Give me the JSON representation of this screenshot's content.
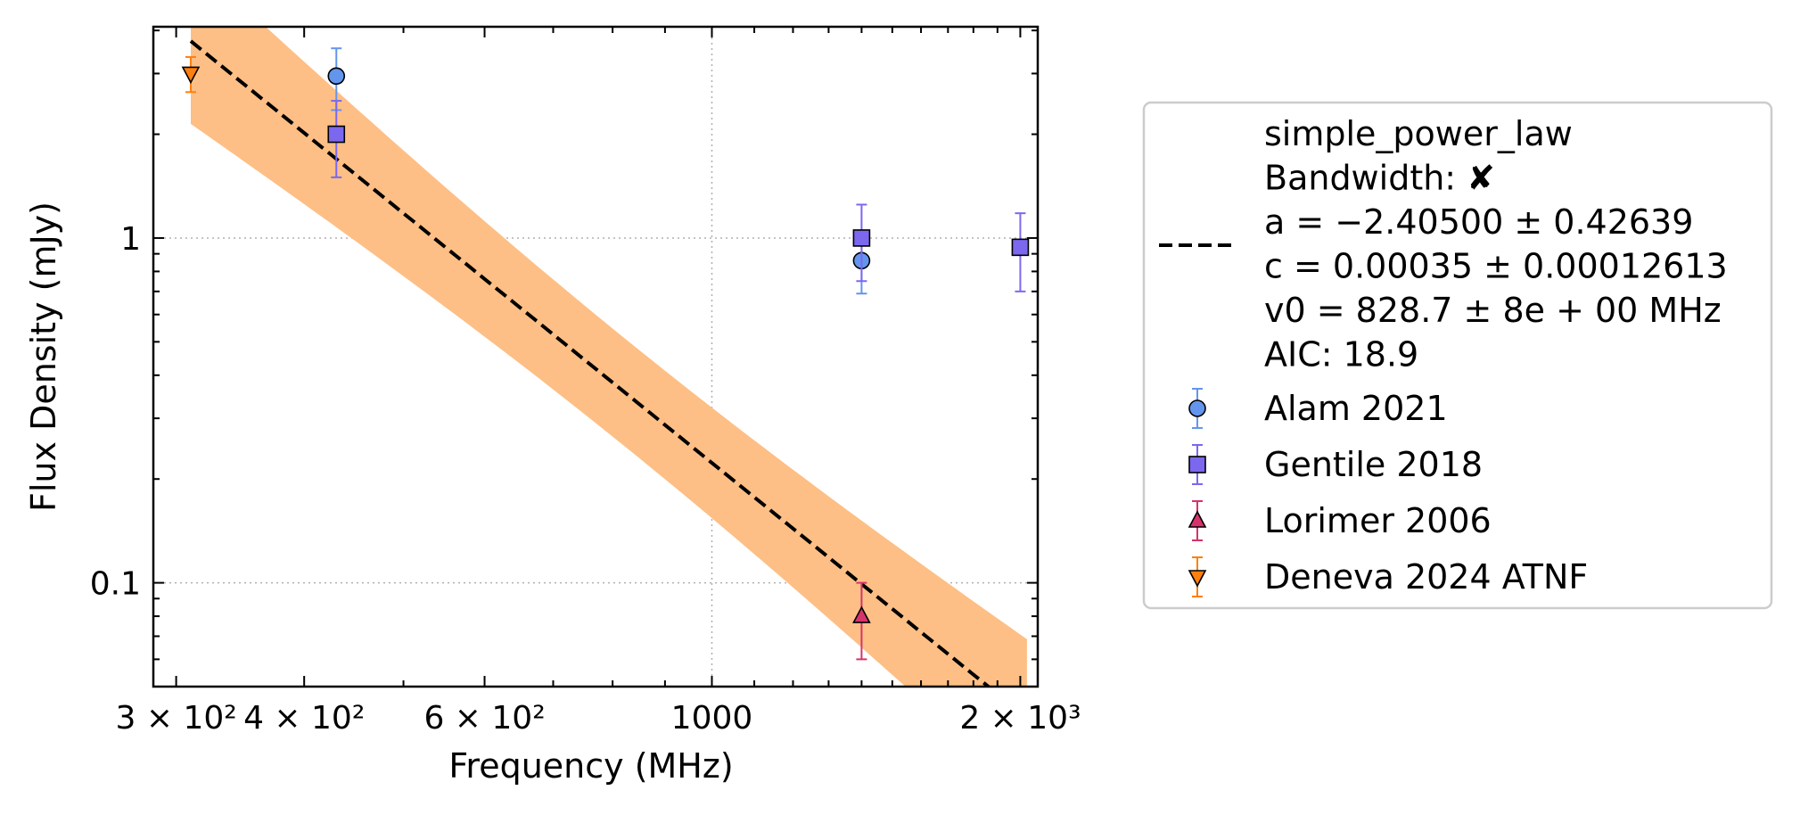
{
  "chart_data": {
    "type": "scatter",
    "title": "",
    "xlabel": "Frequency (MHz)",
    "ylabel": "Flux Density (mJy)",
    "xscale": "log",
    "yscale": "log",
    "xlim": [
      285,
      2080
    ],
    "ylim": [
      0.05,
      4.1
    ],
    "x_ticks": [
      {
        "value": 300,
        "label": "3 × 10²"
      },
      {
        "value": 400,
        "label": "4 × 10²"
      },
      {
        "value": 600,
        "label": "6 × 10²"
      },
      {
        "value": 1000,
        "label": "1000"
      },
      {
        "value": 2000,
        "label": "2 × 10³"
      }
    ],
    "y_ticks": [
      {
        "value": 0.1,
        "label": "0.1"
      },
      {
        "value": 1,
        "label": "1"
      }
    ],
    "grid": true,
    "legend_position": "outside-right",
    "fit": {
      "name": "simple_power_law",
      "style": "dashed",
      "color": "#000000",
      "band_color": "#fdbf85",
      "x_range": [
        310,
        2030
      ],
      "a": -2.405,
      "a_err": 0.42639,
      "c": 0.00035,
      "c_err": 0.00012613,
      "v0": 828.7,
      "legend_lines": [
        "simple_power_law",
        "Bandwidth: ✘",
        "a = −2.40500 ± 0.42639",
        "c = 0.00035 ± 0.00012613",
        "v0 = 828.7 ± 8e + 00 MHz",
        "AIC: 18.9"
      ]
    },
    "series": [
      {
        "name": "Alam 2021",
        "marker": "circle",
        "color": "#6495ed",
        "err_color": "#6495ed",
        "points": [
          {
            "x": 430,
            "y": 2.95,
            "err": 0.6
          },
          {
            "x": 1400,
            "y": 0.86,
            "err": 0.17
          }
        ]
      },
      {
        "name": "Gentile 2018",
        "marker": "square",
        "color": "#7b68ee",
        "err_color": "#7b68ee",
        "points": [
          {
            "x": 430,
            "y": 2.0,
            "err": 0.5
          },
          {
            "x": 1400,
            "y": 1.0,
            "err": 0.25
          },
          {
            "x": 2000,
            "y": 0.94,
            "err": 0.24
          }
        ]
      },
      {
        "name": "Lorimer 2006",
        "marker": "triangle-up",
        "color": "#d6336c",
        "err_color": "#d6336c",
        "points": [
          {
            "x": 1400,
            "y": 0.08,
            "err": 0.02
          }
        ]
      },
      {
        "name": "Deneva 2024 ATNF",
        "marker": "triangle-down",
        "color": "#ff7f0e",
        "err_color": "#ff7f0e",
        "points": [
          {
            "x": 310,
            "y": 3.0,
            "err": 0.35
          }
        ]
      }
    ]
  }
}
